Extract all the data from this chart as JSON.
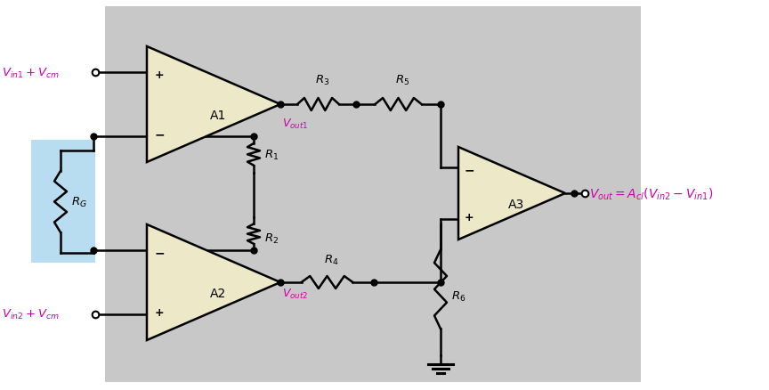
{
  "bg_color": "#c8c8c8",
  "op_amp_fill": "#ede8c8",
  "magenta": "#cc00aa",
  "labels": {
    "Vin1": "$V_{in1} + V_{cm}$",
    "Vin2": "$V_{in2} + V_{cm}$",
    "Vout1": "$V_{out1}$",
    "Vout2": "$V_{out2}$",
    "Vout": "$V_{out} = A_{cl}(V_{in2} - V_{in1})$",
    "R1": "$R_1$",
    "R2": "$R_2$",
    "R3": "$R_3$",
    "R4": "$R_4$",
    "R5": "$R_5$",
    "R6": "$R_6$",
    "RG": "$R_G$",
    "A1": "A1",
    "A2": "A2",
    "A3": "A3"
  },
  "lw": 1.8,
  "dot_size": 5
}
